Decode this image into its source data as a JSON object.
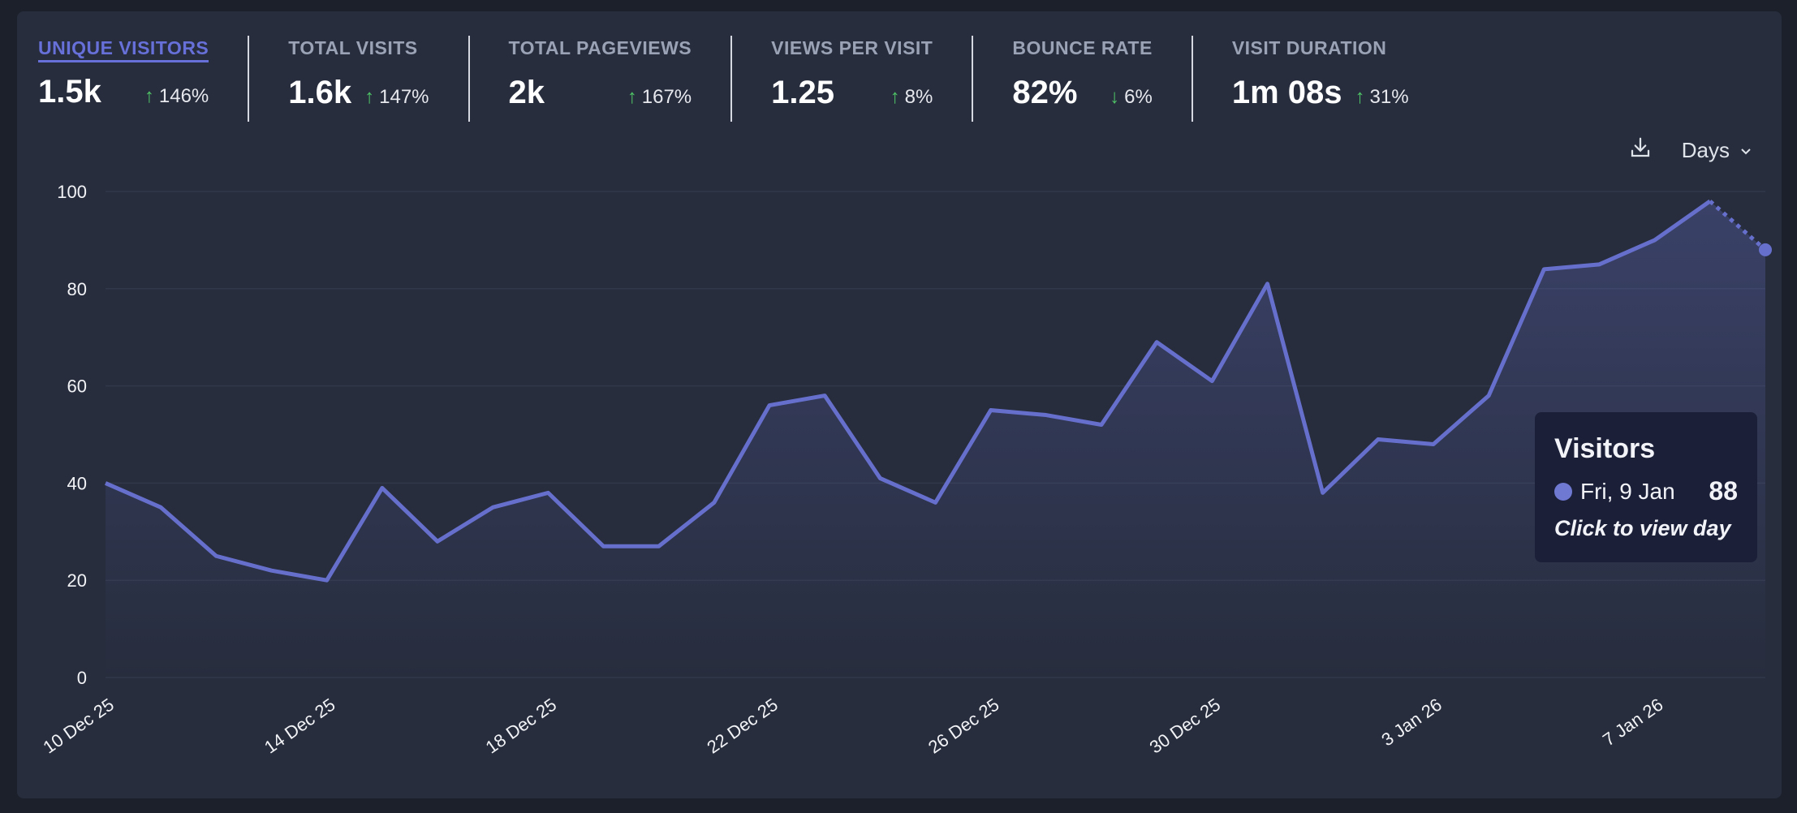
{
  "stats": [
    {
      "label": "UNIQUE VISITORS",
      "value": "1.5k",
      "change": "146%",
      "direction": "up",
      "active": true
    },
    {
      "label": "TOTAL VISITS",
      "value": "1.6k",
      "change": "147%",
      "direction": "up"
    },
    {
      "label": "TOTAL PAGEVIEWS",
      "value": "2k",
      "change": "167%",
      "direction": "up"
    },
    {
      "label": "VIEWS PER VISIT",
      "value": "1.25",
      "change": "8%",
      "direction": "up"
    },
    {
      "label": "BOUNCE RATE",
      "value": "82%",
      "change": "6%",
      "direction": "down"
    },
    {
      "label": "VISIT DURATION",
      "value": "1m 08s",
      "change": "31%",
      "direction": "up"
    }
  ],
  "toolbar": {
    "interval": "Days",
    "download_icon": "download-icon",
    "chevron": "chevron-down-icon"
  },
  "tooltip": {
    "title": "Visitors",
    "date": "Fri, 9 Jan",
    "value": "88",
    "hint": "Click to view day"
  },
  "colors": {
    "line": "#6670cc",
    "positive": "#4fc466",
    "accent": "#6670d8"
  },
  "chart_data": {
    "type": "line",
    "title": "Unique visitors",
    "ylim": [
      0,
      100
    ],
    "yticks": [
      0,
      20,
      40,
      60,
      80,
      100
    ],
    "xtick_labels": [
      "10 Dec 25",
      "14 Dec 25",
      "18 Dec 25",
      "22 Dec 25",
      "26 Dec 25",
      "30 Dec 25",
      "3 Jan 26",
      "7 Jan 26"
    ],
    "xtick_every": 4,
    "values": [
      40,
      35,
      25,
      22,
      20,
      39,
      28,
      35,
      38,
      27,
      27,
      36,
      56,
      58,
      41,
      36,
      55,
      54,
      52,
      69,
      61,
      81,
      38,
      49,
      48,
      58,
      84,
      85,
      90,
      98,
      88
    ],
    "partial_last_point": true,
    "grid": true
  }
}
